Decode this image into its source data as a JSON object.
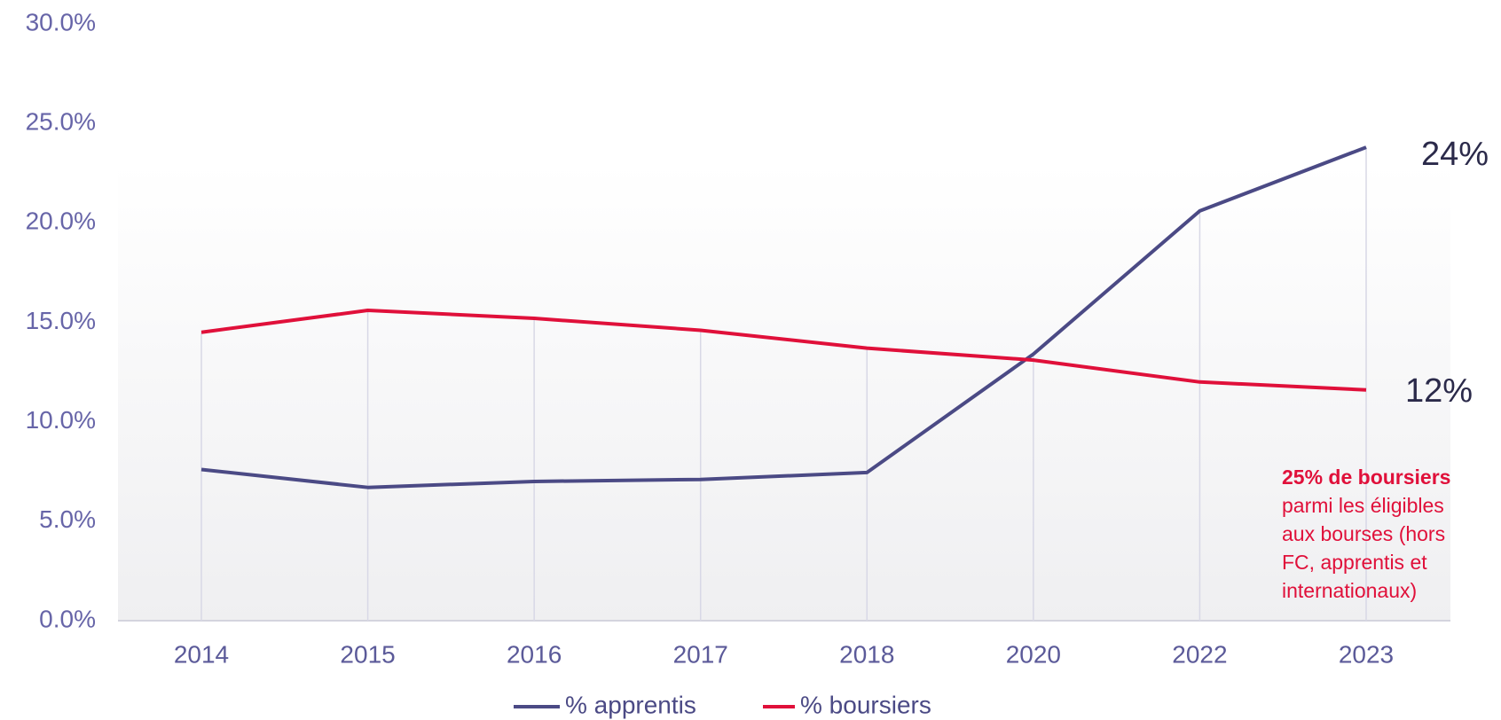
{
  "chart_data": {
    "type": "line",
    "categories": [
      "2014",
      "2015",
      "2016",
      "2017",
      "2018",
      "2020",
      "2022",
      "2023"
    ],
    "series": [
      {
        "name": "% apprentis",
        "color": "#4b4a85",
        "values": [
          7.6,
          6.7,
          7.0,
          7.1,
          7.45,
          13.4,
          20.6,
          23.8
        ],
        "end_label": "24%"
      },
      {
        "name": "% boursiers",
        "color": "#e0103a",
        "values": [
          14.5,
          15.6,
          15.2,
          14.6,
          13.7,
          13.1,
          12.0,
          11.6
        ],
        "end_label": "12%"
      }
    ],
    "ylim": [
      0,
      30
    ],
    "yticks": [
      {
        "value": 0,
        "label": "0.0%"
      },
      {
        "value": 5,
        "label": "5.0%"
      },
      {
        "value": 10,
        "label": "10.0%"
      },
      {
        "value": 15,
        "label": "15.0%"
      },
      {
        "value": 20,
        "label": "20.0%"
      },
      {
        "value": 25,
        "label": "25.0%"
      },
      {
        "value": 30,
        "label": "30.0%"
      }
    ],
    "grid": false,
    "legend": "bottom",
    "annotation": {
      "bold": "25% de boursiers",
      "lines": [
        "parmi les éligibles",
        "aux bourses (hors",
        "FC, apprentis et",
        "internationaux)"
      ]
    }
  }
}
